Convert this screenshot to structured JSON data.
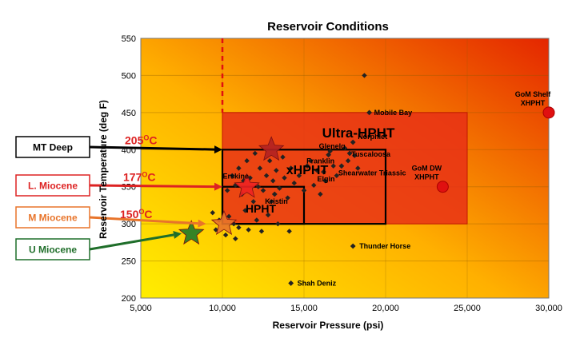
{
  "chart_data": {
    "type": "scatter",
    "title": "Reservoir Conditions",
    "xlabel": "Reservoir Pressure (psi)",
    "ylabel": "Reservoir Temperature (deg F)",
    "xlim": [
      5000,
      30000
    ],
    "ylim": [
      200,
      550
    ],
    "x_ticks": [
      "5,000",
      "10,000",
      "15,000",
      "20,000",
      "25,000",
      "30,000"
    ],
    "x_tick_values": [
      5000,
      10000,
      15000,
      20000,
      25000,
      30000
    ],
    "y_ticks": [
      "200",
      "250",
      "300",
      "350",
      "400",
      "450",
      "500",
      "550"
    ],
    "y_tick_values": [
      200,
      250,
      300,
      350,
      400,
      450,
      500,
      550
    ],
    "grid": true,
    "zones": [
      {
        "label": "HPHT",
        "x": [
          10000,
          15000
        ],
        "y": [
          300,
          350
        ]
      },
      {
        "label": "xHPHT",
        "x": [
          10000,
          20000
        ],
        "y": [
          300,
          400
        ]
      },
      {
        "label": "Ultra-HPHT",
        "x": [
          10000,
          25000
        ],
        "y": [
          300,
          450
        ]
      }
    ],
    "vertical_line_x": 10000,
    "fields": [
      {
        "name": "Mobile Bay",
        "x": 19000,
        "y": 450
      },
      {
        "name": "Thunder Horse",
        "x": 18000,
        "y": 270
      },
      {
        "name": "Shah Deniz",
        "x": 14200,
        "y": 220
      },
      {
        "name": "Franklin",
        "x": 15200,
        "y": 378
      },
      {
        "name": "Glenelg",
        "x": 16500,
        "y": 393
      },
      {
        "name": "Elgin",
        "x": 16200,
        "y": 370
      },
      {
        "name": "Erskine",
        "x": 11300,
        "y": 358
      },
      {
        "name": "Kristin",
        "x": 13200,
        "y": 340
      },
      {
        "name": "Norphlet",
        "x": 18000,
        "y": 410
      },
      {
        "name": "Tuscaloosa",
        "x": 17800,
        "y": 395
      },
      {
        "name": "Shearwater Triassic",
        "x": 17300,
        "y": 378
      }
    ],
    "unlabeled_points": [
      [
        18700,
        500
      ],
      [
        10300,
        345
      ],
      [
        10600,
        365
      ],
      [
        10800,
        352
      ],
      [
        11000,
        375
      ],
      [
        11200,
        340
      ],
      [
        11500,
        385
      ],
      [
        11700,
        362
      ],
      [
        11900,
        330
      ],
      [
        12000,
        395
      ],
      [
        12200,
        350
      ],
      [
        12300,
        375
      ],
      [
        12500,
        345
      ],
      [
        12700,
        365
      ],
      [
        12900,
        385
      ],
      [
        13000,
        330
      ],
      [
        13100,
        358
      ],
      [
        13300,
        372
      ],
      [
        13500,
        348
      ],
      [
        13700,
        390
      ],
      [
        13800,
        362
      ],
      [
        14000,
        335
      ],
      [
        14200,
        375
      ],
      [
        14400,
        355
      ],
      [
        14700,
        365
      ],
      [
        15000,
        345
      ],
      [
        15400,
        385
      ],
      [
        15600,
        352
      ],
      [
        15800,
        372
      ],
      [
        16000,
        340
      ],
      [
        16300,
        358
      ],
      [
        16600,
        398
      ],
      [
        16800,
        378
      ],
      [
        17000,
        365
      ],
      [
        17500,
        402
      ],
      [
        17700,
        385
      ],
      [
        18100,
        392
      ],
      [
        18300,
        375
      ],
      [
        10400,
        310
      ],
      [
        10700,
        300
      ],
      [
        11000,
        295
      ],
      [
        11400,
        318
      ],
      [
        11600,
        292
      ],
      [
        12100,
        305
      ],
      [
        12400,
        290
      ],
      [
        12800,
        312
      ],
      [
        13400,
        300
      ],
      [
        14100,
        290
      ],
      [
        9800,
        305
      ],
      [
        9400,
        315
      ],
      [
        9600,
        292
      ],
      [
        10200,
        285
      ],
      [
        10800,
        280
      ]
    ],
    "ultra_targets": [
      {
        "name": "GoM Shelf XHPHT",
        "name_lines": [
          "GoM Shelf",
          "XHPHT"
        ],
        "x": 30000,
        "y": 450
      },
      {
        "name": "GoM DW XHPHT",
        "name_lines": [
          "GoM DW",
          "XHPHT"
        ],
        "x": 23500,
        "y": 350
      }
    ],
    "stars": [
      {
        "name": "MT Deep",
        "x": 13000,
        "y": 400,
        "color": "#b22222"
      },
      {
        "name": "L. Miocene",
        "x": 11500,
        "y": 350,
        "color": "#ee2222"
      },
      {
        "name": "M Miocene",
        "x": 10100,
        "y": 300,
        "color": "#e8742a"
      },
      {
        "name": "U Miocene",
        "x": 8100,
        "y": 287,
        "color": "#1f7a2a"
      }
    ],
    "temperature_labels": [
      {
        "text": "205°C",
        "base": "205",
        "sup": "O",
        "tail": "C",
        "y": 400,
        "color": "#dd2222"
      },
      {
        "text": "177°C",
        "base": "177",
        "sup": "O",
        "tail": "C",
        "y": 350,
        "color": "#dd2222"
      },
      {
        "text": "150°C",
        "base": "150",
        "sup": "O",
        "tail": "C",
        "y": 300,
        "color": "#dd2222"
      }
    ],
    "boxes": [
      {
        "label": "MT Deep",
        "color": "#000000",
        "border": "#000000",
        "target_x": 10000,
        "target_y": 400
      },
      {
        "label": "L. Miocene",
        "color": "#dd2222",
        "border": "#dd2222",
        "target_x": 10000,
        "target_y": 350
      },
      {
        "label": "M Miocene",
        "color": "#e8742a",
        "border": "#e8742a",
        "target_x": 9000,
        "target_y": 300
      },
      {
        "label": "U Miocene",
        "color": "#1f6e2a",
        "border": "#1f6e2a",
        "target_x": 7500,
        "target_y": 287
      }
    ],
    "colors": {
      "background_low": "#ffec00",
      "background_high": "#e62600",
      "ultra_zone": "#e83015",
      "point": "#222222",
      "target": "#e01010"
    }
  }
}
